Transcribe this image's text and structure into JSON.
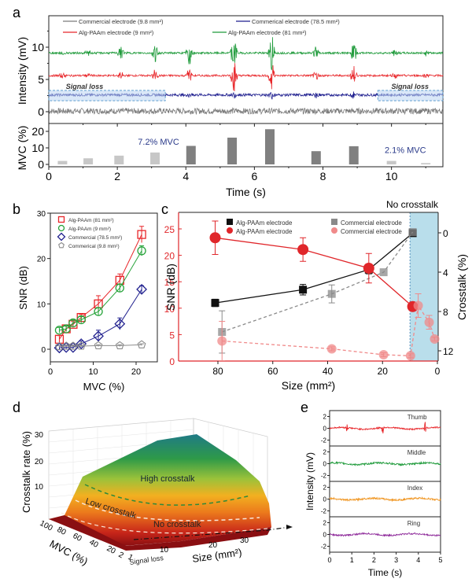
{
  "panel_labels": {
    "a": "a",
    "b": "b",
    "c": "c",
    "d": "d",
    "e": "e"
  },
  "chart_data": [
    {
      "panel": "a",
      "type": "line",
      "title": "",
      "xlabel": "Time (s)",
      "ylabel": "Intensity (mV)",
      "xlim": [
        0,
        11.5
      ],
      "ylim": [
        -1,
        14
      ],
      "xticks": [
        0,
        2,
        4,
        6,
        8,
        10
      ],
      "yticks": [
        0,
        5,
        10
      ],
      "legend": {
        "placement": "top",
        "entries": [
          "Commercial electrode (9.8 mm²)",
          "Commerical electrode (78.5 mm²)",
          "Alg-PAAm electrode (9 mm²)",
          "Alg-PAAm electrode (81 mm²)"
        ]
      },
      "series": [
        {
          "name": "Commercial electrode (9.8 mm²)",
          "color": "#7a7a7a",
          "baseline": 0.1,
          "noise": 0.45,
          "bursts": []
        },
        {
          "name": "Commerical electrode (78.5 mm²)",
          "color": "#1f1f8f",
          "baseline": 2.6,
          "noise": 0.2,
          "bursts": [
            [
              4.1,
              0.4
            ],
            [
              5.4,
              0.6
            ],
            [
              6.5,
              0.9
            ],
            [
              7.8,
              0.5
            ],
            [
              8.9,
              0.6
            ]
          ]
        },
        {
          "name": "Alg-PAAm electrode (9 mm²)",
          "color": "#e8262a",
          "baseline": 5.6,
          "noise": 0.15,
          "bursts": [
            [
              0.4,
              0.4
            ],
            [
              1.15,
              0.4
            ],
            [
              2.1,
              0.6
            ],
            [
              3.1,
              1.0
            ],
            [
              4.1,
              1.4
            ],
            [
              5.4,
              2.8
            ],
            [
              6.5,
              3.4
            ],
            [
              7.8,
              0.8
            ],
            [
              8.9,
              1.6
            ],
            [
              10.1,
              0.4
            ],
            [
              11.0,
              0.3
            ]
          ]
        },
        {
          "name": "Alg-PAAm electrode (81 mm²)",
          "color": "#1e9a3a",
          "baseline": 9.1,
          "noise": 0.15,
          "bursts": [
            [
              0.4,
              0.6
            ],
            [
              1.15,
              0.8
            ],
            [
              2.1,
              1.2
            ],
            [
              3.1,
              1.6
            ],
            [
              4.1,
              2.2
            ],
            [
              5.4,
              3.0
            ],
            [
              6.5,
              3.4
            ],
            [
              7.8,
              1.4
            ],
            [
              8.9,
              1.8
            ],
            [
              10.1,
              0.5
            ],
            [
              11.0,
              0.4
            ]
          ]
        }
      ],
      "annotations": [
        {
          "text": "Signal loss",
          "x": 1.3,
          "y": 3.4,
          "box_x": [
            0,
            3.4
          ],
          "box_y": [
            1.7,
            3.3
          ]
        },
        {
          "text": "Signal loss",
          "x": 10.8,
          "y": 3.4,
          "box_x": [
            9.6,
            11.5
          ],
          "box_y": [
            1.7,
            3.3
          ]
        }
      ]
    },
    {
      "panel": "a-mvc",
      "type": "bar",
      "xlabel": "Time (s)",
      "ylabel": "MVC (%)",
      "xlim": [
        0,
        11.5
      ],
      "ylim": [
        0,
        25
      ],
      "xticks": [
        0,
        2,
        4,
        6,
        8,
        10
      ],
      "yticks": [
        0,
        10,
        20
      ],
      "x": [
        0.4,
        1.15,
        2.05,
        3.1,
        4.15,
        5.35,
        6.45,
        7.8,
        8.9,
        10.0,
        11.0
      ],
      "values": [
        2.1,
        3.7,
        5.3,
        7.2,
        11.2,
        16.2,
        21.3,
        8.0,
        11.0,
        2.1,
        0.8
      ],
      "light_color": "#c7c7c7",
      "dark_color": "#808080",
      "light_indices": [
        0,
        1,
        2,
        3,
        9,
        10
      ],
      "annotations": [
        {
          "text": "7.2%  MVC",
          "x": 2.6,
          "y": 12
        },
        {
          "text": "2.1%  MVC",
          "x": 9.8,
          "y": 7
        }
      ]
    },
    {
      "panel": "b",
      "type": "scatter",
      "xlabel": "MVC (%)",
      "ylabel": "SNR (dB)",
      "xlim": [
        0,
        25
      ],
      "ylim": [
        -2.5,
        30
      ],
      "xticks": [
        0,
        10,
        20
      ],
      "yticks": [
        0,
        10,
        20,
        30
      ],
      "legend": {
        "placement": "top-left",
        "entries": [
          "Alg-PAAm  (81 mm²)",
          "Alg-PAAm  (9 mm²)",
          "Commercial  (78.5 mm²)",
          "Commerical  (9.8 mm²)"
        ]
      },
      "x": [
        2.1,
        3.7,
        5.3,
        7.2,
        11.2,
        16.2,
        21.3
      ],
      "series": [
        {
          "name": "Alg-PAAm (81 mm²)",
          "marker": "square",
          "color": "#e8262a",
          "values": [
            2.2,
            4.5,
            5.5,
            7.0,
            10.0,
            15.2,
            25.3
          ],
          "errors": [
            0.8,
            0.6,
            0.6,
            0.7,
            1.8,
            1.4,
            1.8
          ]
        },
        {
          "name": "Alg-PAAm (9 mm²)",
          "marker": "circle",
          "color": "#27a33a",
          "values": [
            4.2,
            4.5,
            5.8,
            6.5,
            8.3,
            13.5,
            21.7
          ],
          "errors": [
            0.6,
            0.6,
            0.6,
            0.7,
            0.9,
            0.9,
            1.1
          ]
        },
        {
          "name": "Commercial (78.5 mm²)",
          "marker": "diamond",
          "color": "#22228f",
          "values": [
            0.3,
            0.4,
            0.4,
            1.2,
            2.9,
            5.6,
            13.2
          ],
          "errors": [
            0.5,
            0.5,
            0.5,
            0.6,
            1.3,
            1.3,
            0.8
          ]
        },
        {
          "name": "Commerical (9.8 mm²)",
          "marker": "pentagon",
          "color": "#8c8c8c",
          "values": [
            0.6,
            0.7,
            0.7,
            0.7,
            0.8,
            0.8,
            1.0
          ],
          "errors": [
            0.2,
            0.2,
            0.2,
            0.2,
            0.2,
            0.2,
            0.2
          ]
        }
      ]
    },
    {
      "panel": "c",
      "type": "scatter",
      "title": "No crosstalk",
      "xlabel": "Size (mm²)",
      "ylabel": "SNR (dB)",
      "ylabel_right": "Crosstalk (%)",
      "xlim": [
        85,
        0
      ],
      "ylim": [
        0,
        28
      ],
      "ylim_right": [
        13.5,
        -1.5
      ],
      "xticks": [
        80,
        60,
        40,
        20,
        0
      ],
      "yticks": [
        0,
        5,
        10,
        15,
        20,
        25
      ],
      "yticks_right": [
        0,
        4,
        8,
        12
      ],
      "shaded_region": {
        "x": [
          10,
          0
        ],
        "color": "#a8d6e6",
        "label": "No crosstalk"
      },
      "legend": {
        "placement": "top-center",
        "entries": [
          "Alg-PAAm electrode",
          "Alg-PAAm electrode",
          "Commercial electrode",
          "Commercial electrode"
        ]
      },
      "series": [
        {
          "name": "Alg-PAAm electrode SNR",
          "axis": "left",
          "marker": "square",
          "color": "#111111",
          "x": [
            81,
            49,
            25,
            9
          ],
          "values": [
            11.0,
            13.5,
            17.3,
            24.2
          ],
          "errors": [
            0.7,
            1.0,
            0.8,
            0
          ],
          "line": "solid"
        },
        {
          "name": "Commercial electrode SNR",
          "axis": "left",
          "marker": "square",
          "color": "#8a8a8a",
          "x": [
            78.5,
            38.5,
            19.6,
            9
          ],
          "values": [
            5.5,
            12.7,
            16.8,
            24.4
          ],
          "errors": [
            4.0,
            1.7,
            0,
            0
          ],
          "line": "dashed"
        },
        {
          "name": "Alg-PAAm electrode crosstalk",
          "axis": "right",
          "marker": "circle",
          "color": "#e0262a",
          "x": [
            81,
            49,
            25,
            9
          ],
          "values": [
            0.5,
            1.7,
            3.6,
            7.5
          ],
          "errors": [
            1.7,
            1.2,
            1.5,
            0
          ],
          "line": "solid"
        },
        {
          "name": "Commercial electrode crosstalk",
          "axis": "right",
          "marker": "circle",
          "color": "#f08a8a",
          "x": [
            78.5,
            38.5,
            19.6,
            9.8,
            7,
            3,
            1
          ],
          "values": [
            11.0,
            11.8,
            12.4,
            12.5,
            7.4,
            9.1,
            10.8
          ],
          "errors": [
            2.0,
            0.2,
            0.2,
            0.2,
            1.2,
            0.7,
            0.2
          ],
          "line": "dashed"
        }
      ]
    },
    {
      "panel": "d",
      "type": "heatmap",
      "title": "",
      "xlabel": "Size (mm²)",
      "ylabel": "MVC (%)",
      "zlabel": "Crosstalk rate (%)",
      "xticks": [
        10,
        20,
        30
      ],
      "yticks": [
        100,
        80,
        60,
        40,
        20,
        2,
        1
      ],
      "zticks": [
        10,
        20,
        30
      ],
      "regions": [
        "High crosstalk",
        "Low crosstalk",
        "No crosstalk",
        "Signal loss"
      ],
      "colormap": [
        "#8a0f12",
        "#c8261a",
        "#ec7a1c",
        "#f2b020",
        "#9bc23a",
        "#2e9a48",
        "#1f7a86"
      ]
    },
    {
      "panel": "e",
      "type": "line",
      "xlabel": "Time (s)",
      "ylabel": "Intensity (mV)",
      "xlim": [
        0,
        5
      ],
      "ylim": [
        -3,
        3
      ],
      "xticks": [
        0,
        1,
        2,
        3,
        4,
        5
      ],
      "yticks": [
        -2,
        0,
        2
      ],
      "series": [
        {
          "name": "Thumb",
          "color": "#e8262a",
          "noise": 0.12,
          "spikes": [
            0.8,
            2.4,
            4.3
          ]
        },
        {
          "name": "Middle",
          "color": "#1e9a3a",
          "noise": 0.15,
          "spikes": []
        },
        {
          "name": "Index",
          "color": "#f0941e",
          "noise": 0.15,
          "spikes": []
        },
        {
          "name": "Ring",
          "color": "#8e2a9a",
          "noise": 0.13,
          "spikes": []
        }
      ]
    }
  ]
}
